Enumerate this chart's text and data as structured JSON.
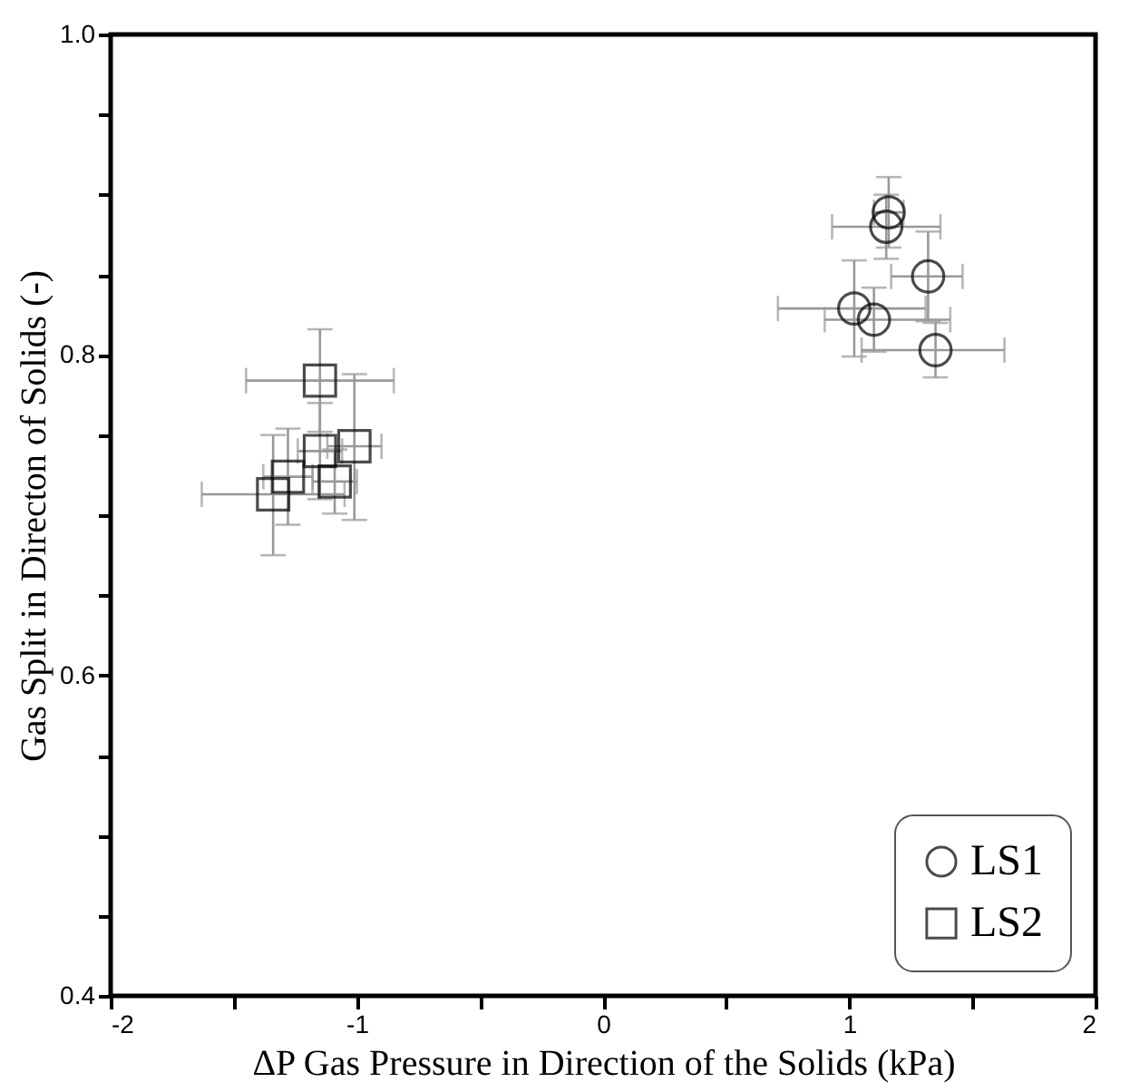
{
  "chart_data": {
    "type": "scatter",
    "xlabel": "ΔP Gas Pressure in Direction of the Solids (kPa)",
    "ylabel": "Gas Split in Directon of Solids (-)",
    "xlim": [
      -2,
      2
    ],
    "ylim": [
      0.4,
      1.0
    ],
    "xticks": [
      -2,
      {
        "value": -1.5,
        "label": null
      },
      -1,
      {
        "value": -0.5,
        "label": null
      },
      0,
      {
        "value": 0.5,
        "label": null
      },
      1,
      {
        "value": 1.5,
        "label": null
      },
      2
    ],
    "yticks": [
      0.4,
      {
        "value": 0.45,
        "label": null
      },
      {
        "value": 0.5,
        "label": null
      },
      {
        "value": 0.55,
        "label": null
      },
      0.6,
      {
        "value": 0.65,
        "label": null
      },
      {
        "value": 0.7,
        "label": null
      },
      {
        "value": 0.75,
        "label": null
      },
      0.8,
      {
        "value": 0.85,
        "label": null
      },
      {
        "value": 0.9,
        "label": null
      },
      {
        "value": 0.95,
        "label": null
      },
      {
        "value": 1.0,
        "label": "1.0"
      }
    ],
    "grid": false,
    "legend": "bottom right",
    "series": [
      {
        "name": "LS1",
        "color": "#000000",
        "marker": "circle",
        "x": [
          1.16,
          1.15,
          1.32,
          1.02,
          1.1,
          1.35
        ],
        "values": [
          0.889,
          0.88,
          0.849,
          0.829,
          0.822,
          0.803
        ],
        "errors": [
          0.022,
          0.02,
          0.028,
          0.03,
          0.02,
          0.017
        ],
        "xerrors": [
          0.06,
          [
            0.93,
            1.37
          ],
          [
            1.17,
            1.46
          ],
          [
            0.71,
            1.31
          ],
          [
            0.9,
            1.41
          ],
          [
            1.05,
            1.63
          ]
        ]
      },
      {
        "name": "LS2",
        "color": "#000000",
        "marker": "square",
        "x": [
          -1.15,
          -1.15,
          -1.01,
          -1.09,
          -1.28,
          -1.34
        ],
        "values": [
          0.784,
          0.74,
          0.743,
          0.721,
          0.724,
          0.713
        ],
        "errors": [
          0.032,
          0.03,
          [
            0.697,
            0.788
          ],
          0.02,
          0.03,
          [
            0.675,
            0.75
          ]
        ],
        "xerrors": [
          [
            -1.45,
            -0.85
          ],
          0.09,
          0.11,
          0.09,
          0.1,
          [
            -1.63,
            -1.05
          ]
        ]
      }
    ]
  }
}
